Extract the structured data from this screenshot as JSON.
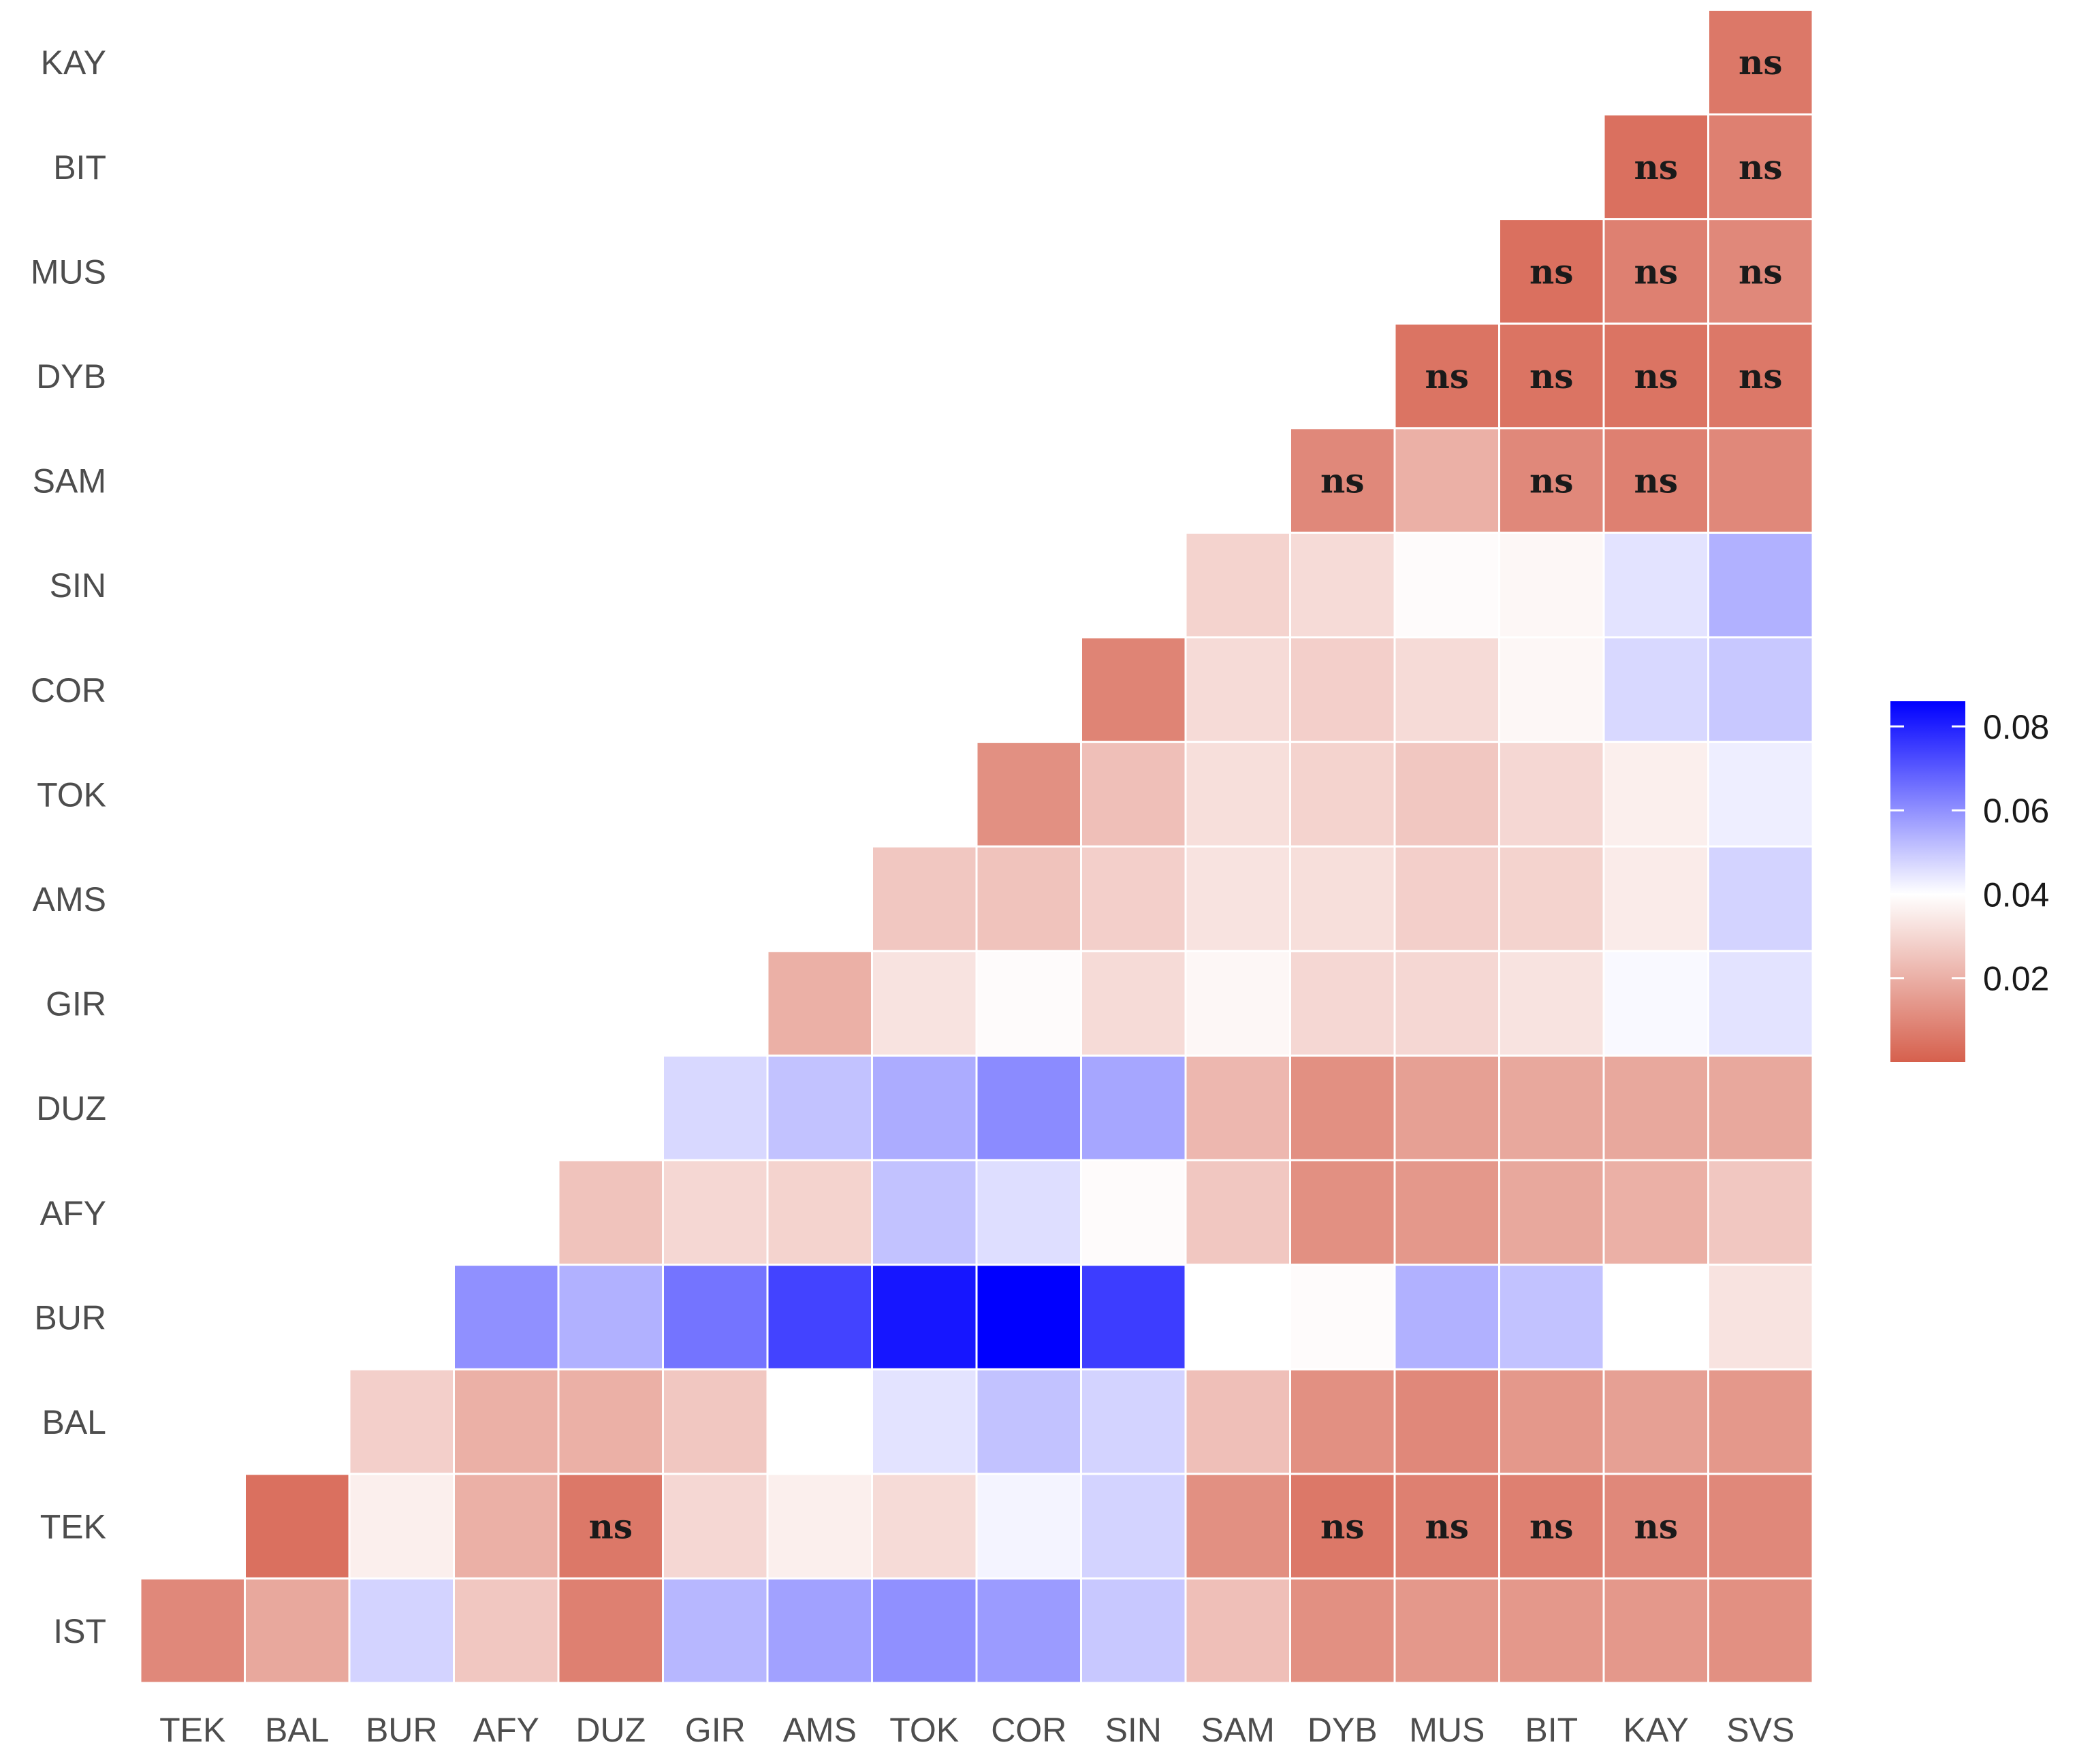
{
  "chart_data": {
    "type": "heatmap",
    "x_categories": [
      "TEK",
      "BAL",
      "BUR",
      "AFY",
      "DUZ",
      "GIR",
      "AMS",
      "TOK",
      "COR",
      "SIN",
      "SAM",
      "DYB",
      "MUS",
      "BIT",
      "KAY",
      "SVS"
    ],
    "y_categories": [
      "IST",
      "TEK",
      "BAL",
      "BUR",
      "AFY",
      "DUZ",
      "GIR",
      "AMS",
      "TOK",
      "COR",
      "SIN",
      "SAM",
      "DYB",
      "MUS",
      "BIT",
      "KAY"
    ],
    "values": [
      [
        0.01,
        0.018,
        0.048,
        0.026,
        0.008,
        0.053,
        0.057,
        0.06,
        0.058,
        0.05,
        0.024,
        0.012,
        0.014,
        0.014,
        0.014,
        0.012
      ],
      [
        null,
        0.004,
        0.036,
        0.02,
        0.006,
        0.03,
        0.036,
        0.031,
        0.042,
        0.048,
        0.012,
        0.006,
        0.008,
        0.008,
        0.01,
        0.01
      ],
      [
        null,
        null,
        0.028,
        0.02,
        0.02,
        0.026,
        0.04,
        0.045,
        0.051,
        0.048,
        0.024,
        0.012,
        0.01,
        0.014,
        0.016,
        0.014
      ],
      [
        null,
        null,
        null,
        0.06,
        0.054,
        0.065,
        0.074,
        0.082,
        0.086,
        0.075,
        0.04,
        0.039,
        0.054,
        0.051,
        0.04,
        0.033
      ],
      [
        null,
        null,
        null,
        null,
        0.025,
        0.03,
        0.029,
        0.051,
        0.046,
        0.039,
        0.026,
        0.012,
        0.014,
        0.018,
        0.02,
        0.026
      ],
      [
        null,
        null,
        null,
        null,
        null,
        0.047,
        0.051,
        0.055,
        0.061,
        0.056,
        0.022,
        0.012,
        0.016,
        0.018,
        0.018,
        0.018
      ],
      [
        null,
        null,
        null,
        null,
        null,
        null,
        0.02,
        0.033,
        0.039,
        0.031,
        0.038,
        0.03,
        0.03,
        0.033,
        0.041,
        0.045
      ],
      [
        null,
        null,
        null,
        null,
        null,
        null,
        null,
        0.026,
        0.025,
        0.028,
        0.033,
        0.032,
        0.028,
        0.029,
        0.035,
        0.048
      ],
      [
        null,
        null,
        null,
        null,
        null,
        null,
        null,
        null,
        0.012,
        0.024,
        0.032,
        0.029,
        0.026,
        0.03,
        0.036,
        0.043
      ],
      [
        null,
        null,
        null,
        null,
        null,
        null,
        null,
        null,
        null,
        0.009,
        0.031,
        0.028,
        0.031,
        0.038,
        0.047,
        0.05
      ],
      [
        null,
        null,
        null,
        null,
        null,
        null,
        null,
        null,
        null,
        null,
        0.029,
        0.031,
        0.039,
        0.038,
        0.045,
        0.054
      ],
      [
        null,
        null,
        null,
        null,
        null,
        null,
        null,
        null,
        null,
        null,
        null,
        0.01,
        0.02,
        0.01,
        0.008,
        0.01
      ],
      [
        null,
        null,
        null,
        null,
        null,
        null,
        null,
        null,
        null,
        null,
        null,
        null,
        0.005,
        0.005,
        0.005,
        0.006
      ],
      [
        null,
        null,
        null,
        null,
        null,
        null,
        null,
        null,
        null,
        null,
        null,
        null,
        null,
        0.004,
        0.008,
        0.01
      ],
      [
        null,
        null,
        null,
        null,
        null,
        null,
        null,
        null,
        null,
        null,
        null,
        null,
        null,
        null,
        0.004,
        0.008
      ],
      [
        null,
        null,
        null,
        null,
        null,
        null,
        null,
        null,
        null,
        null,
        null,
        null,
        null,
        null,
        null,
        0.006
      ]
    ],
    "annotations": [
      {
        "row": "TEK",
        "col": "DUZ",
        "text": "ns"
      },
      {
        "row": "TEK",
        "col": "DYB",
        "text": "ns"
      },
      {
        "row": "TEK",
        "col": "MUS",
        "text": "ns"
      },
      {
        "row": "TEK",
        "col": "BIT",
        "text": "ns"
      },
      {
        "row": "TEK",
        "col": "KAY",
        "text": "ns"
      },
      {
        "row": "SAM",
        "col": "DYB",
        "text": "ns"
      },
      {
        "row": "SAM",
        "col": "BIT",
        "text": "ns"
      },
      {
        "row": "SAM",
        "col": "KAY",
        "text": "ns"
      },
      {
        "row": "DYB",
        "col": "MUS",
        "text": "ns"
      },
      {
        "row": "DYB",
        "col": "BIT",
        "text": "ns"
      },
      {
        "row": "DYB",
        "col": "KAY",
        "text": "ns"
      },
      {
        "row": "DYB",
        "col": "SVS",
        "text": "ns"
      },
      {
        "row": "MUS",
        "col": "BIT",
        "text": "ns"
      },
      {
        "row": "MUS",
        "col": "KAY",
        "text": "ns"
      },
      {
        "row": "MUS",
        "col": "SVS",
        "text": "ns"
      },
      {
        "row": "BIT",
        "col": "KAY",
        "text": "ns"
      },
      {
        "row": "BIT",
        "col": "SVS",
        "text": "ns"
      },
      {
        "row": "KAY",
        "col": "SVS",
        "text": "ns"
      }
    ],
    "color_scale": {
      "low": "#d6604d",
      "mid": "#ffffff",
      "high": "#0000ff",
      "min": 0.0,
      "midpoint": 0.04,
      "max": 0.086
    },
    "legend": {
      "position": "right",
      "ticks": [
        0.02,
        0.04,
        0.06,
        0.08
      ],
      "tick_labels": [
        "0.02",
        "0.04",
        "0.06",
        "0.08"
      ]
    },
    "title": "",
    "xlabel": "",
    "ylabel": ""
  }
}
